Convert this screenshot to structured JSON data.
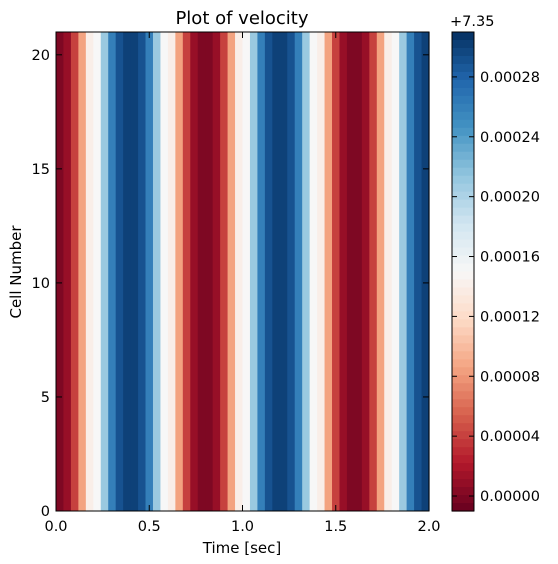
{
  "chart_data": {
    "type": "heatmap",
    "title": "Plot of velocity",
    "xlabel": "Time [sec]",
    "ylabel": "Cell Number",
    "xlim": [
      0.0,
      2.0
    ],
    "ylim": [
      0,
      21
    ],
    "x_ticks": [
      "0.0",
      "0.5",
      "1.0",
      "1.5",
      "2.0"
    ],
    "y_ticks": [
      "0",
      "5",
      "10",
      "15",
      "20"
    ],
    "x_tick_values": [
      0.0,
      0.5,
      1.0,
      1.5,
      2.0
    ],
    "y_tick_values": [
      0,
      5,
      10,
      15,
      20
    ],
    "grid": false,
    "colormap": "RdBu",
    "colorbar": {
      "offset_label": "+7.35",
      "range": [
        -1e-05,
        0.00031
      ],
      "tick_values": [
        0.0,
        4e-05,
        8e-05,
        0.00012,
        0.00016,
        0.0002,
        0.00024,
        0.00028
      ],
      "tick_labels": [
        "0.00000",
        "0.00004",
        "0.00008",
        "0.00012",
        "0.00016",
        "0.00020",
        "0.00024",
        "0.00028"
      ]
    },
    "time_step": 0.04,
    "columns": 50,
    "cells": 21,
    "description_of_values": "velocity is constant across cells and varies with time; value at column i computed from samples below",
    "velocity_offset_samples": [
      0.0,
      1.05e-05,
      4e-05,
      8.5e-05,
      0.00014,
      0.00015,
      0.00021,
      0.00026,
      0.00029,
      0.0003,
      0.0003,
      0.00029,
      0.00026,
      0.00021,
      0.00015,
      0.00014,
      8.5e-05,
      4e-05,
      1.05e-05,
      0.0,
      0.0,
      1.05e-05,
      4e-05,
      8.5e-05,
      0.00014,
      0.00015,
      0.00021,
      0.00026,
      0.00029,
      0.0003,
      0.0003,
      0.00029,
      0.00026,
      0.00021,
      0.00015,
      0.00014,
      8.5e-05,
      4e-05,
      1.05e-05,
      0.0,
      0.0,
      1.05e-05,
      4e-05,
      8.5e-05,
      0.00014,
      0.00015,
      0.00021,
      0.00026,
      0.00029,
      0.0003
    ],
    "colors": {
      "stops": [
        "#67001f",
        "#b2182b",
        "#d6604d",
        "#f4a582",
        "#fddbc7",
        "#f7f7f7",
        "#d1e5f0",
        "#92c5de",
        "#4393c3",
        "#2166ac",
        "#053061"
      ]
    }
  }
}
